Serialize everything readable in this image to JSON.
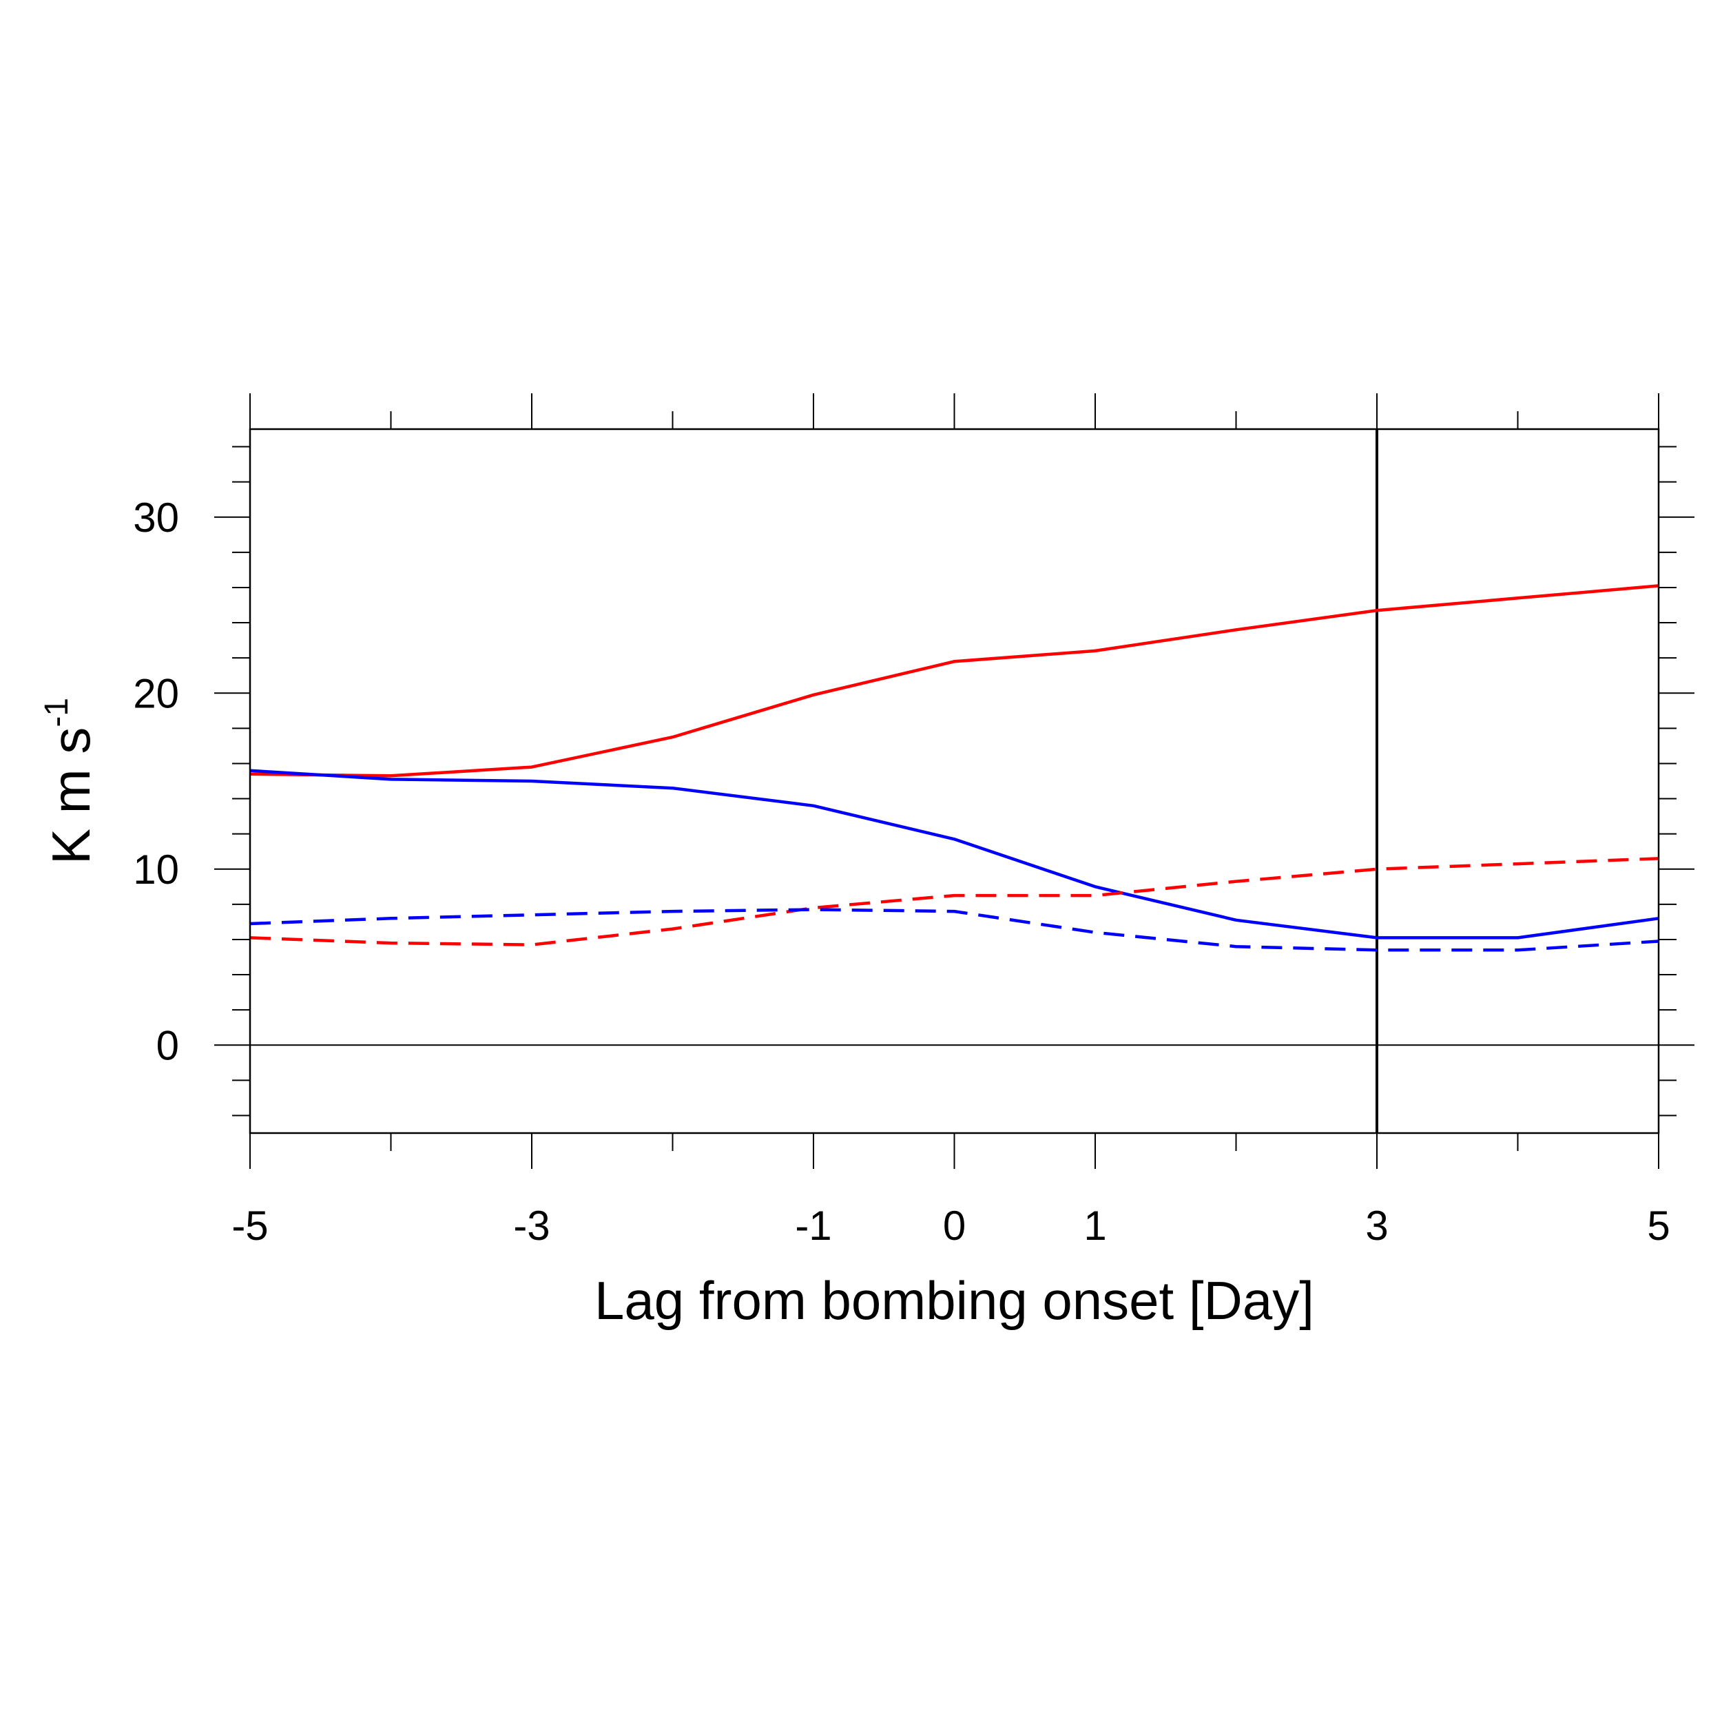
{
  "chart_data": {
    "type": "line",
    "xlabel": "Lag from bombing onset [Day]",
    "ylabel_main": "K m s",
    "ylabel_superscript": "-1",
    "xlim": [
      -5,
      5
    ],
    "ylim": [
      -5,
      35
    ],
    "x_major_ticks": [
      -5,
      -3,
      -1,
      0,
      1,
      3,
      5
    ],
    "x_minor_ticks": [
      -4,
      -2,
      2,
      4
    ],
    "x_tick_labels": [
      "-5",
      "-3",
      "-1",
      "0",
      "1",
      "3",
      "5"
    ],
    "y_major_ticks": [
      0,
      10,
      20,
      30
    ],
    "y_minor_step": 2,
    "y_tick_labels": [
      "0",
      "10",
      "20",
      "30"
    ],
    "zero_line": 0,
    "vertical_marker_x": 3,
    "x": [
      -5,
      -4,
      -3,
      -2,
      -1,
      0,
      1,
      2,
      3,
      4,
      5
    ],
    "series": [
      {
        "color": "#ff0000",
        "dash": "solid",
        "values": [
          15.4,
          15.3,
          15.8,
          17.5,
          19.9,
          21.8,
          22.4,
          23.6,
          24.7,
          25.4,
          26.1
        ]
      },
      {
        "color": "#0000ff",
        "dash": "solid",
        "values": [
          15.6,
          15.1,
          15.0,
          14.6,
          13.6,
          11.7,
          9.0,
          7.1,
          6.1,
          6.1,
          7.2
        ]
      },
      {
        "color": "#ff0000",
        "dash": "dashed",
        "values": [
          6.1,
          5.8,
          5.7,
          6.6,
          7.8,
          8.5,
          8.5,
          9.3,
          10.0,
          10.3,
          10.6
        ]
      },
      {
        "color": "#0000ff",
        "dash": "dashed",
        "values": [
          6.9,
          7.2,
          7.4,
          7.6,
          7.7,
          7.6,
          6.4,
          5.6,
          5.4,
          5.4,
          5.9
        ]
      }
    ]
  }
}
